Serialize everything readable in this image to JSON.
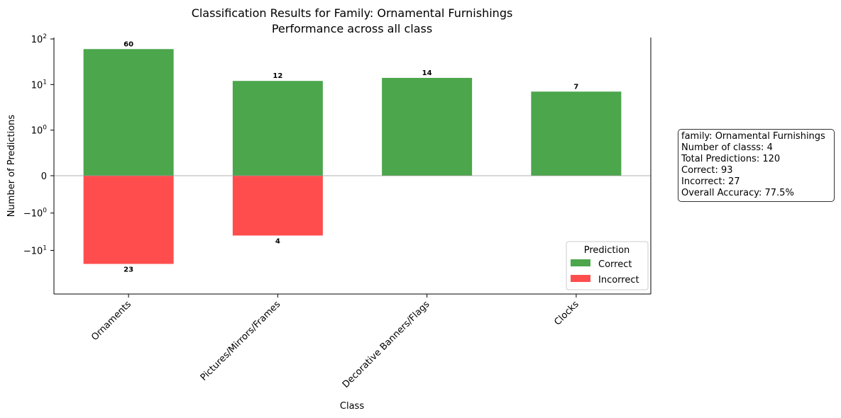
{
  "chart_data": {
    "type": "bar",
    "title": "Classification Results for Family: Ornamental Furnishings",
    "subtitle": "Performance across all class",
    "xlabel": "Class",
    "ylabel": "Number of Predictions",
    "yscale": "symlog",
    "ylim": [
      -23,
      100
    ],
    "yticks": [
      "10^2",
      "10^1",
      "10^0",
      "0",
      "−10^0",
      "−10^1"
    ],
    "categories": [
      "Ornaments",
      "Pictures/Mirrors/Frames",
      "Decorative Banners/Flags",
      "Clocks"
    ],
    "series": [
      {
        "name": "Correct",
        "color": "#4ca64c",
        "values": [
          60,
          12,
          14,
          7
        ]
      },
      {
        "name": "Incorrect",
        "color": "#ff4d4d",
        "values": [
          23,
          4,
          0,
          0
        ]
      }
    ],
    "legend": {
      "title": "Prediction",
      "placement": "lower-right"
    },
    "grid": false
  },
  "stats": {
    "line1": "family: Ornamental Furnishings",
    "line2": "Number of classs: 4",
    "line3": "Total Predictions: 120",
    "line4": "Correct: 93",
    "line5": "Incorrect: 27",
    "line6": "Overall Accuracy: 77.5%"
  }
}
